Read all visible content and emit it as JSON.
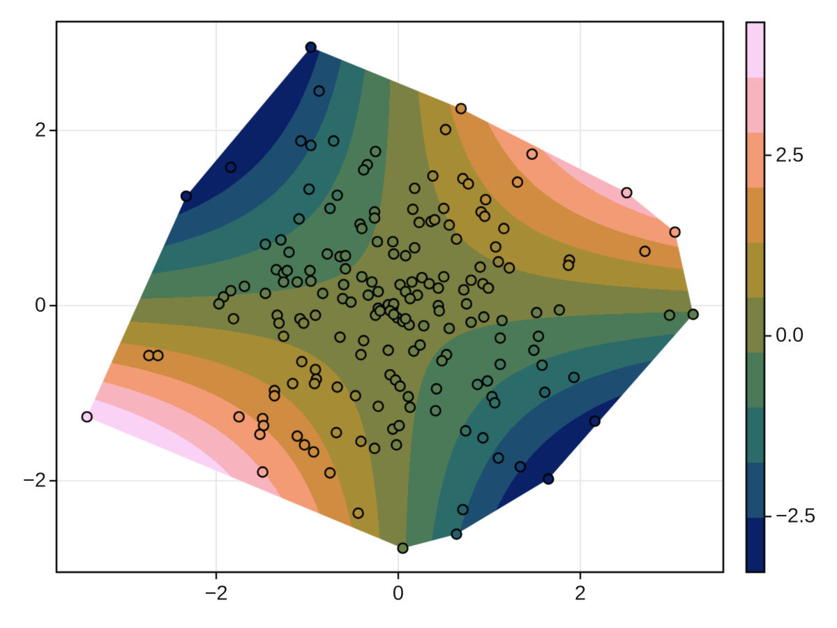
{
  "chart_data": {
    "type": "tricontourf_scatter",
    "title": "",
    "xlabel": "",
    "ylabel": "",
    "xlim": [
      -3.75,
      3.57
    ],
    "ylim": [
      -3.04,
      3.24
    ],
    "grid": true,
    "x_ticks": {
      "values": [
        -2,
        0,
        2
      ],
      "labels": [
        "−2",
        "0",
        "2"
      ]
    },
    "y_ticks": {
      "values": [
        -2,
        0,
        2
      ],
      "labels": [
        "−2",
        "0",
        "2"
      ]
    },
    "surface": {
      "z_formula": "x*y",
      "fill_region": "convex hull of points"
    },
    "levels": {
      "n_bands": 10,
      "color_range": [
        -3.27,
        4.34
      ]
    },
    "palette_low_to_high": [
      "#0a2167",
      "#1d4e71",
      "#2b6b69",
      "#4b7a59",
      "#7a8142",
      "#a78c36",
      "#d08c41",
      "#f29b74",
      "#f7b4bf",
      "#fad2f5"
    ],
    "colorbar": {
      "tick_values": [
        2.5,
        0.0,
        -2.5
      ],
      "tick_labels": [
        "2.5",
        "0.0",
        "−2.5"
      ],
      "orientation": "vertical",
      "position": "right"
    },
    "marker_style": {
      "shape": "circle",
      "edge_color": "#000000",
      "fill": "colormap(z)"
    },
    "points_xy": [
      [
        -0.96,
        2.95
      ],
      [
        -0.87,
        2.45
      ],
      [
        0.69,
        2.25
      ],
      [
        0.52,
        2.01
      ],
      [
        -1.07,
        1.88
      ],
      [
        -0.96,
        1.83
      ],
      [
        -0.71,
        1.88
      ],
      [
        -1.84,
        1.58
      ],
      [
        -0.25,
        1.76
      ],
      [
        -0.34,
        1.61
      ],
      [
        -0.38,
        1.55
      ],
      [
        1.47,
        1.73
      ],
      [
        1.31,
        1.41
      ],
      [
        0.71,
        1.45
      ],
      [
        0.77,
        1.39
      ],
      [
        0.38,
        1.48
      ],
      [
        -0.98,
        1.33
      ],
      [
        -0.67,
        1.26
      ],
      [
        2.51,
        1.29
      ],
      [
        -2.33,
        1.25
      ],
      [
        0.96,
        1.21
      ],
      [
        -0.75,
        1.11
      ],
      [
        0.91,
        1.07
      ],
      [
        0.95,
        1.02
      ],
      [
        0.5,
        1.11
      ],
      [
        0.18,
        1.34
      ],
      [
        0.16,
        1.1
      ],
      [
        0.23,
        0.95
      ],
      [
        0.36,
        0.96
      ],
      [
        -1.09,
        0.99
      ],
      [
        -0.26,
        1.07
      ],
      [
        -0.26,
        1.0
      ],
      [
        -0.42,
        0.93
      ],
      [
        -0.4,
        0.88
      ],
      [
        0.4,
        0.98
      ],
      [
        0.56,
        0.92
      ],
      [
        1.16,
        0.88
      ],
      [
        3.04,
        0.84
      ],
      [
        -1.46,
        0.7
      ],
      [
        -1.29,
        0.75
      ],
      [
        -1.2,
        0.61
      ],
      [
        -0.78,
        0.59
      ],
      [
        -0.64,
        0.56
      ],
      [
        -0.58,
        0.57
      ],
      [
        -0.23,
        0.73
      ],
      [
        -0.06,
        0.73
      ],
      [
        -0.05,
        0.59
      ],
      [
        0.08,
        0.57
      ],
      [
        0.18,
        0.66
      ],
      [
        0.64,
        0.76
      ],
      [
        1.07,
        0.67
      ],
      [
        2.71,
        0.62
      ],
      [
        1.88,
        0.52
      ],
      [
        1.1,
        0.5
      ],
      [
        1.87,
        0.46
      ],
      [
        -1.34,
        0.41
      ],
      [
        -1.26,
        0.37
      ],
      [
        -1.22,
        0.4
      ],
      [
        -0.97,
        0.4
      ],
      [
        -0.58,
        0.42
      ],
      [
        -1.26,
        0.27
      ],
      [
        -1.11,
        0.27
      ],
      [
        -0.96,
        0.28
      ],
      [
        -1.84,
        0.17
      ],
      [
        -1.92,
        0.1
      ],
      [
        -1.97,
        0.02
      ],
      [
        -1.69,
        0.22
      ],
      [
        -1.46,
        0.14
      ],
      [
        -0.83,
        0.14
      ],
      [
        -0.6,
        0.24
      ],
      [
        -0.4,
        0.33
      ],
      [
        -0.29,
        0.27
      ],
      [
        -0.22,
        0.16
      ],
      [
        -0.33,
        0.12
      ],
      [
        -0.22,
        -0.03
      ],
      [
        -0.25,
        -0.11
      ],
      [
        -0.11,
        0.01
      ],
      [
        -0.06,
        -0.02
      ],
      [
        -0.01,
        -0.14
      ],
      [
        0.05,
        -0.18
      ],
      [
        0.12,
        -0.22
      ],
      [
        0.28,
        -0.23
      ],
      [
        -0.61,
        0.08
      ],
      [
        -0.52,
        0.04
      ],
      [
        0.5,
        0.33
      ],
      [
        0.44,
        0.2
      ],
      [
        0.44,
        0.0
      ],
      [
        0.72,
        0.18
      ],
      [
        0.8,
        0.29
      ],
      [
        0.9,
        0.44
      ],
      [
        0.93,
        0.25
      ],
      [
        0.99,
        0.2
      ],
      [
        1.22,
        0.43
      ],
      [
        0.75,
        0.02
      ],
      [
        0.94,
        -0.13
      ],
      [
        0.8,
        -0.19
      ],
      [
        1.14,
        -0.17
      ],
      [
        0.56,
        -0.26
      ],
      [
        1.52,
        -0.08
      ],
      [
        1.77,
        -0.05
      ],
      [
        3.24,
        -0.1
      ],
      [
        2.98,
        -0.11
      ],
      [
        0.02,
        0.24
      ],
      [
        0.15,
        0.27
      ],
      [
        0.26,
        0.32
      ],
      [
        0.34,
        0.25
      ],
      [
        0.08,
        0.16
      ],
      [
        0.21,
        0.12
      ],
      [
        0.13,
        0.08
      ],
      [
        -0.05,
        0.02
      ],
      [
        -0.09,
        -0.06
      ],
      [
        -0.05,
        -0.1
      ],
      [
        0.08,
        -0.15
      ],
      [
        0.45,
        -0.06
      ],
      [
        -0.2,
        -0.06
      ],
      [
        -1.81,
        -0.15
      ],
      [
        -1.33,
        -0.11
      ],
      [
        -1.31,
        -0.2
      ],
      [
        -1.08,
        -0.15
      ],
      [
        -1.04,
        -0.2
      ],
      [
        -0.91,
        -0.11
      ],
      [
        -1.26,
        -0.35
      ],
      [
        -0.64,
        -0.36
      ],
      [
        -0.38,
        -0.4
      ],
      [
        -0.41,
        -0.56
      ],
      [
        -0.11,
        -0.51
      ],
      [
        0.17,
        -0.52
      ],
      [
        0.24,
        -0.45
      ],
      [
        1.12,
        -0.37
      ],
      [
        1.54,
        -0.35
      ],
      [
        1.49,
        -0.51
      ],
      [
        0.53,
        -0.56
      ],
      [
        0.48,
        -0.63
      ],
      [
        -2.74,
        -0.57
      ],
      [
        -2.64,
        -0.57
      ],
      [
        -1.06,
        -0.64
      ],
      [
        -0.91,
        -0.73
      ],
      [
        -0.9,
        -0.84
      ],
      [
        -0.92,
        -0.89
      ],
      [
        -1.16,
        -0.89
      ],
      [
        -1.36,
        -0.97
      ],
      [
        -1.36,
        -1.03
      ],
      [
        -0.67,
        -0.93
      ],
      [
        -0.47,
        -1.03
      ],
      [
        -0.22,
        -1.15
      ],
      [
        -0.09,
        -0.79
      ],
      [
        -0.03,
        -0.85
      ],
      [
        0.02,
        -0.92
      ],
      [
        0.11,
        -1.04
      ],
      [
        0.13,
        -1.16
      ],
      [
        1.12,
        -0.67
      ],
      [
        1.58,
        -0.68
      ],
      [
        1.93,
        -0.82
      ],
      [
        0.87,
        -0.9
      ],
      [
        0.98,
        -0.86
      ],
      [
        1.03,
        -1.04
      ],
      [
        1.06,
        -1.11
      ],
      [
        1.61,
        -0.99
      ],
      [
        0.42,
        -0.95
      ],
      [
        0.41,
        -1.2
      ],
      [
        -3.42,
        -1.27
      ],
      [
        -1.75,
        -1.27
      ],
      [
        -1.49,
        -1.29
      ],
      [
        -1.48,
        -1.37
      ],
      [
        -1.52,
        -1.47
      ],
      [
        -1.11,
        -1.49
      ],
      [
        -1.03,
        -1.59
      ],
      [
        -0.93,
        -1.67
      ],
      [
        -0.68,
        -1.45
      ],
      [
        -0.41,
        -1.55
      ],
      [
        -0.26,
        -1.63
      ],
      [
        -0.02,
        -1.59
      ],
      [
        -0.06,
        -1.41
      ],
      [
        0.01,
        -1.37
      ],
      [
        0.74,
        -1.43
      ],
      [
        0.93,
        -1.51
      ],
      [
        2.16,
        -1.32
      ],
      [
        1.1,
        -1.74
      ],
      [
        1.34,
        -1.84
      ],
      [
        1.65,
        -1.98
      ],
      [
        -1.49,
        -1.9
      ],
      [
        -0.75,
        -1.91
      ],
      [
        -0.44,
        -2.37
      ],
      [
        0.71,
        -2.33
      ],
      [
        0.64,
        -2.61
      ],
      [
        0.05,
        -2.77
      ]
    ]
  },
  "style_colors": {
    "background": "#ffffff",
    "axis_frame": "#000000",
    "gridline": "#e3e3e3",
    "tick_label": "#1c1c1c",
    "marker_edge": "#000000"
  }
}
